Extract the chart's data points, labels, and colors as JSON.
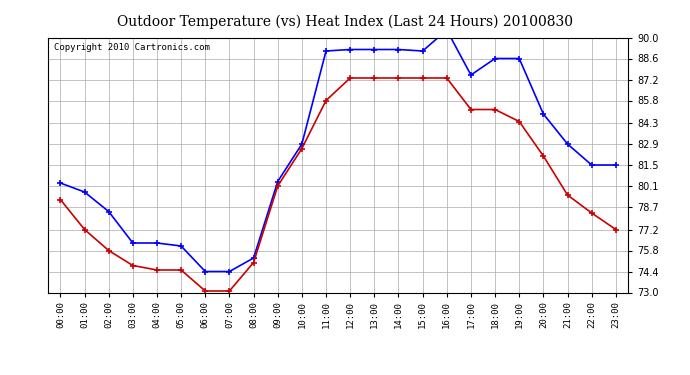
{
  "title": "Outdoor Temperature (vs) Heat Index (Last 24 Hours) 20100830",
  "copyright": "Copyright 2010 Cartronics.com",
  "x_labels": [
    "00:00",
    "01:00",
    "02:00",
    "03:00",
    "04:00",
    "05:00",
    "06:00",
    "07:00",
    "08:00",
    "09:00",
    "10:00",
    "11:00",
    "12:00",
    "13:00",
    "14:00",
    "15:00",
    "16:00",
    "17:00",
    "18:00",
    "19:00",
    "20:00",
    "21:00",
    "22:00",
    "23:00"
  ],
  "blue_data": [
    80.3,
    79.7,
    78.4,
    76.3,
    76.3,
    76.1,
    74.4,
    74.4,
    75.3,
    80.4,
    82.9,
    89.1,
    89.2,
    89.2,
    89.2,
    89.1,
    90.5,
    87.5,
    88.6,
    88.6,
    84.9,
    82.9,
    81.5,
    81.5
  ],
  "red_data": [
    79.2,
    77.2,
    75.8,
    74.8,
    74.5,
    74.5,
    73.1,
    73.1,
    75.0,
    80.1,
    82.6,
    85.8,
    87.3,
    87.3,
    87.3,
    87.3,
    87.3,
    85.2,
    85.2,
    84.4,
    82.1,
    79.5,
    78.3,
    77.2
  ],
  "blue_color": "#0000FF",
  "red_color": "#CC0000",
  "ylim": [
    73.0,
    90.0
  ],
  "yticks": [
    73.0,
    74.4,
    75.8,
    77.2,
    78.7,
    80.1,
    81.5,
    82.9,
    84.3,
    85.8,
    87.2,
    88.6,
    90.0
  ],
  "bg_color": "#ffffff",
  "plot_bg_color": "#ffffff",
  "grid_color": "#aaaaaa",
  "title_fontsize": 10,
  "copyright_fontsize": 6.5
}
